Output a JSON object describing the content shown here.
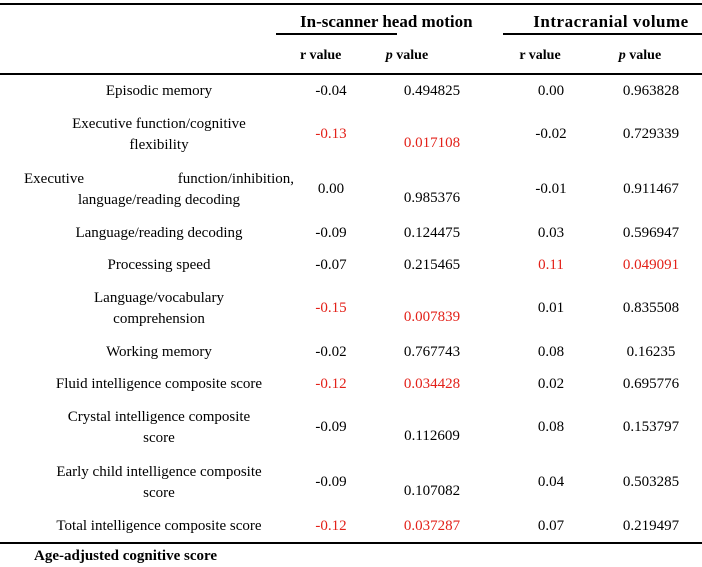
{
  "colors": {
    "background": "#ffffff",
    "text": "#000000",
    "rule": "#000000",
    "red_highlight": "#e32119"
  },
  "header": {
    "groups": [
      {
        "label": "In-scanner head motion"
      },
      {
        "label": "Intracranial volume"
      }
    ],
    "subcolumns": [
      {
        "letter": "r",
        "rest": " value",
        "italic": false
      },
      {
        "letter": "p",
        "rest": " value",
        "italic": true
      },
      {
        "letter": "r",
        "rest": " value",
        "italic": false
      },
      {
        "letter": "p",
        "rest": " value",
        "italic": true
      }
    ]
  },
  "table": {
    "rows": [
      {
        "lines": [
          "Episodic memory"
        ],
        "motion_r": "-0.04",
        "motion_p": "0.494825",
        "icv_r": "0.00",
        "icv_p": "0.963828",
        "red": []
      },
      {
        "lines": [
          "Executive function/cognitive",
          "flexibility"
        ],
        "motion_r": "-0.13",
        "motion_p": "0.017108",
        "icv_r": "-0.02",
        "icv_p": "0.729339",
        "red": [
          "motion_r",
          "motion_p"
        ]
      },
      {
        "lines": [
          "Executive function/inhibition,",
          "language/reading decoding"
        ],
        "justify_first": true,
        "motion_r": "0.00",
        "motion_p": "0.985376",
        "icv_r": "-0.01",
        "icv_p": "0.911467",
        "red": []
      },
      {
        "lines": [
          "Language/reading decoding"
        ],
        "motion_r": "-0.09",
        "motion_p": "0.124475",
        "icv_r": "0.03",
        "icv_p": "0.596947",
        "red": []
      },
      {
        "lines": [
          "Processing speed"
        ],
        "motion_r": "-0.07",
        "motion_p": "0.215465",
        "icv_r": "0.11",
        "icv_p": "0.049091",
        "red": [
          "icv_r",
          "icv_p"
        ]
      },
      {
        "lines": [
          "Language/vocabulary",
          "comprehension"
        ],
        "motion_r": "-0.15",
        "motion_p": "0.007839",
        "icv_r": "0.01",
        "icv_p": "0.835508",
        "red": [
          "motion_r",
          "motion_p"
        ]
      },
      {
        "lines": [
          "Working memory"
        ],
        "motion_r": "-0.02",
        "motion_p": "0.767743",
        "icv_r": "0.08",
        "icv_p": "0.16235",
        "red": []
      },
      {
        "lines": [
          "Fluid intelligence composite score"
        ],
        "motion_r": "-0.12",
        "motion_p": "0.034428",
        "icv_r": "0.02",
        "icv_p": "0.695776",
        "red": [
          "motion_r",
          "motion_p"
        ]
      },
      {
        "lines": [
          "Crystal intelligence composite",
          "score"
        ],
        "motion_r": "-0.09",
        "motion_p": "0.112609",
        "icv_r": "0.08",
        "icv_p": "0.153797",
        "red": []
      },
      {
        "lines": [
          "Early child intelligence composite",
          "score"
        ],
        "motion_r": "-0.09",
        "motion_p": "0.107082",
        "icv_r": "0.04",
        "icv_p": "0.503285",
        "red": []
      },
      {
        "lines": [
          "Total intelligence composite score"
        ],
        "motion_r": "-0.12",
        "motion_p": "0.037287",
        "icv_r": "0.07",
        "icv_p": "0.219497",
        "red": [
          "motion_r",
          "motion_p"
        ]
      }
    ]
  },
  "footer": {
    "label": "Age-adjusted cognitive score"
  }
}
